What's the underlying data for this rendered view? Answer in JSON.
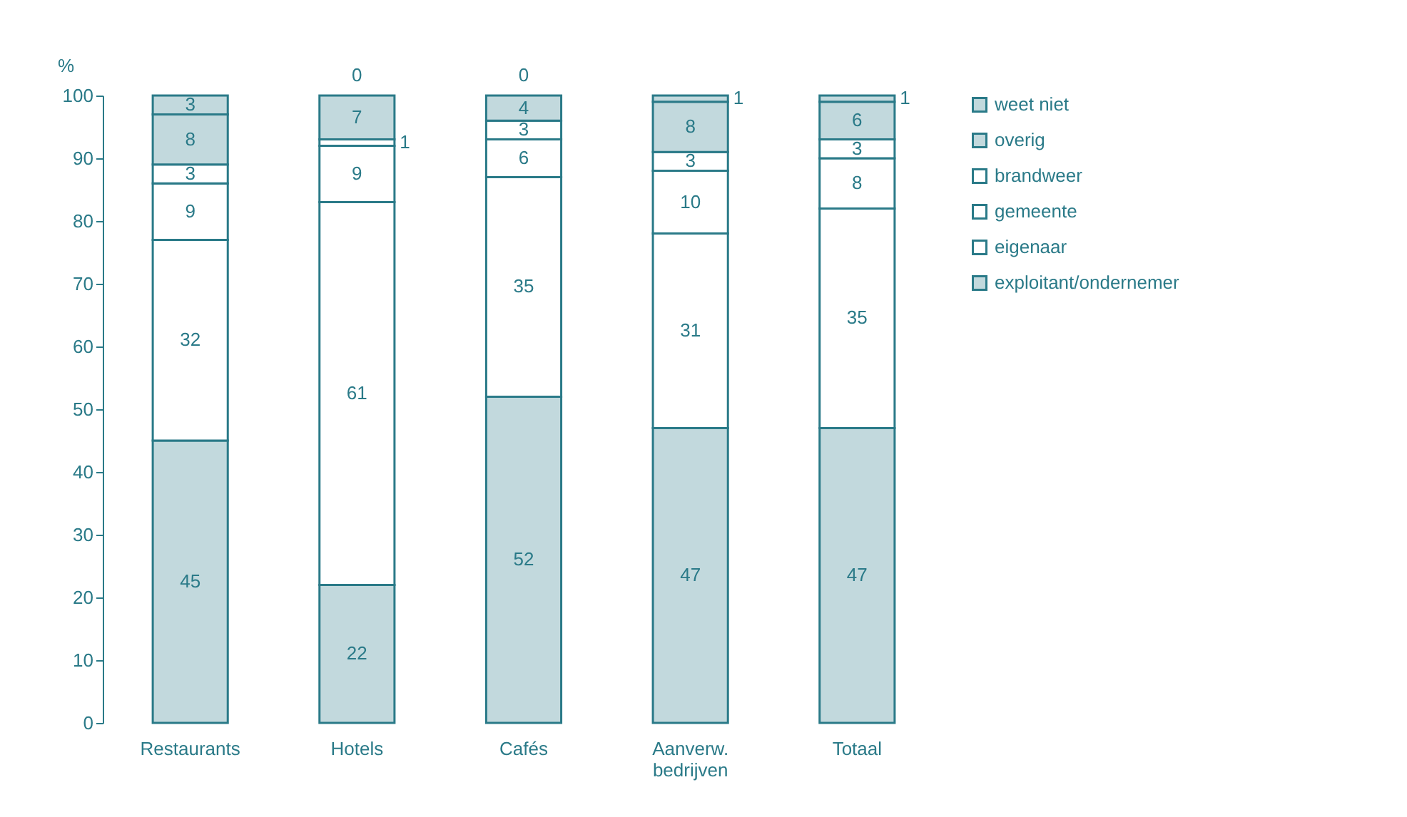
{
  "chart_data": {
    "type": "bar",
    "stacked": true,
    "ylabel": "%",
    "categories": [
      "Restaurants",
      "Hotels",
      "Cafés",
      "Aanverw. bedrijven",
      "Totaal"
    ],
    "series": [
      {
        "name": "exploitant/ondernemer",
        "color": "#c2d9dd",
        "values": [
          45,
          22,
          52,
          47,
          47
        ]
      },
      {
        "name": "eigenaar",
        "color": "#ffffff",
        "values": [
          32,
          61,
          35,
          31,
          35
        ]
      },
      {
        "name": "gemeente",
        "color": "#ffffff",
        "values": [
          9,
          9,
          6,
          10,
          8
        ]
      },
      {
        "name": "brandweer",
        "color": "#ffffff",
        "values": [
          3,
          1,
          3,
          3,
          3
        ]
      },
      {
        "name": "overig",
        "color": "#c2d9dd",
        "values": [
          8,
          7,
          4,
          8,
          6
        ]
      },
      {
        "name": "weet niet",
        "color": "#c2d9dd",
        "values": [
          3,
          0,
          0,
          1,
          1
        ]
      }
    ],
    "ylim": [
      0,
      100
    ],
    "yticks": [
      0,
      10,
      20,
      30,
      40,
      50,
      60,
      70,
      80,
      90,
      100
    ],
    "data_labels": true,
    "legend": "right",
    "grid": false
  }
}
